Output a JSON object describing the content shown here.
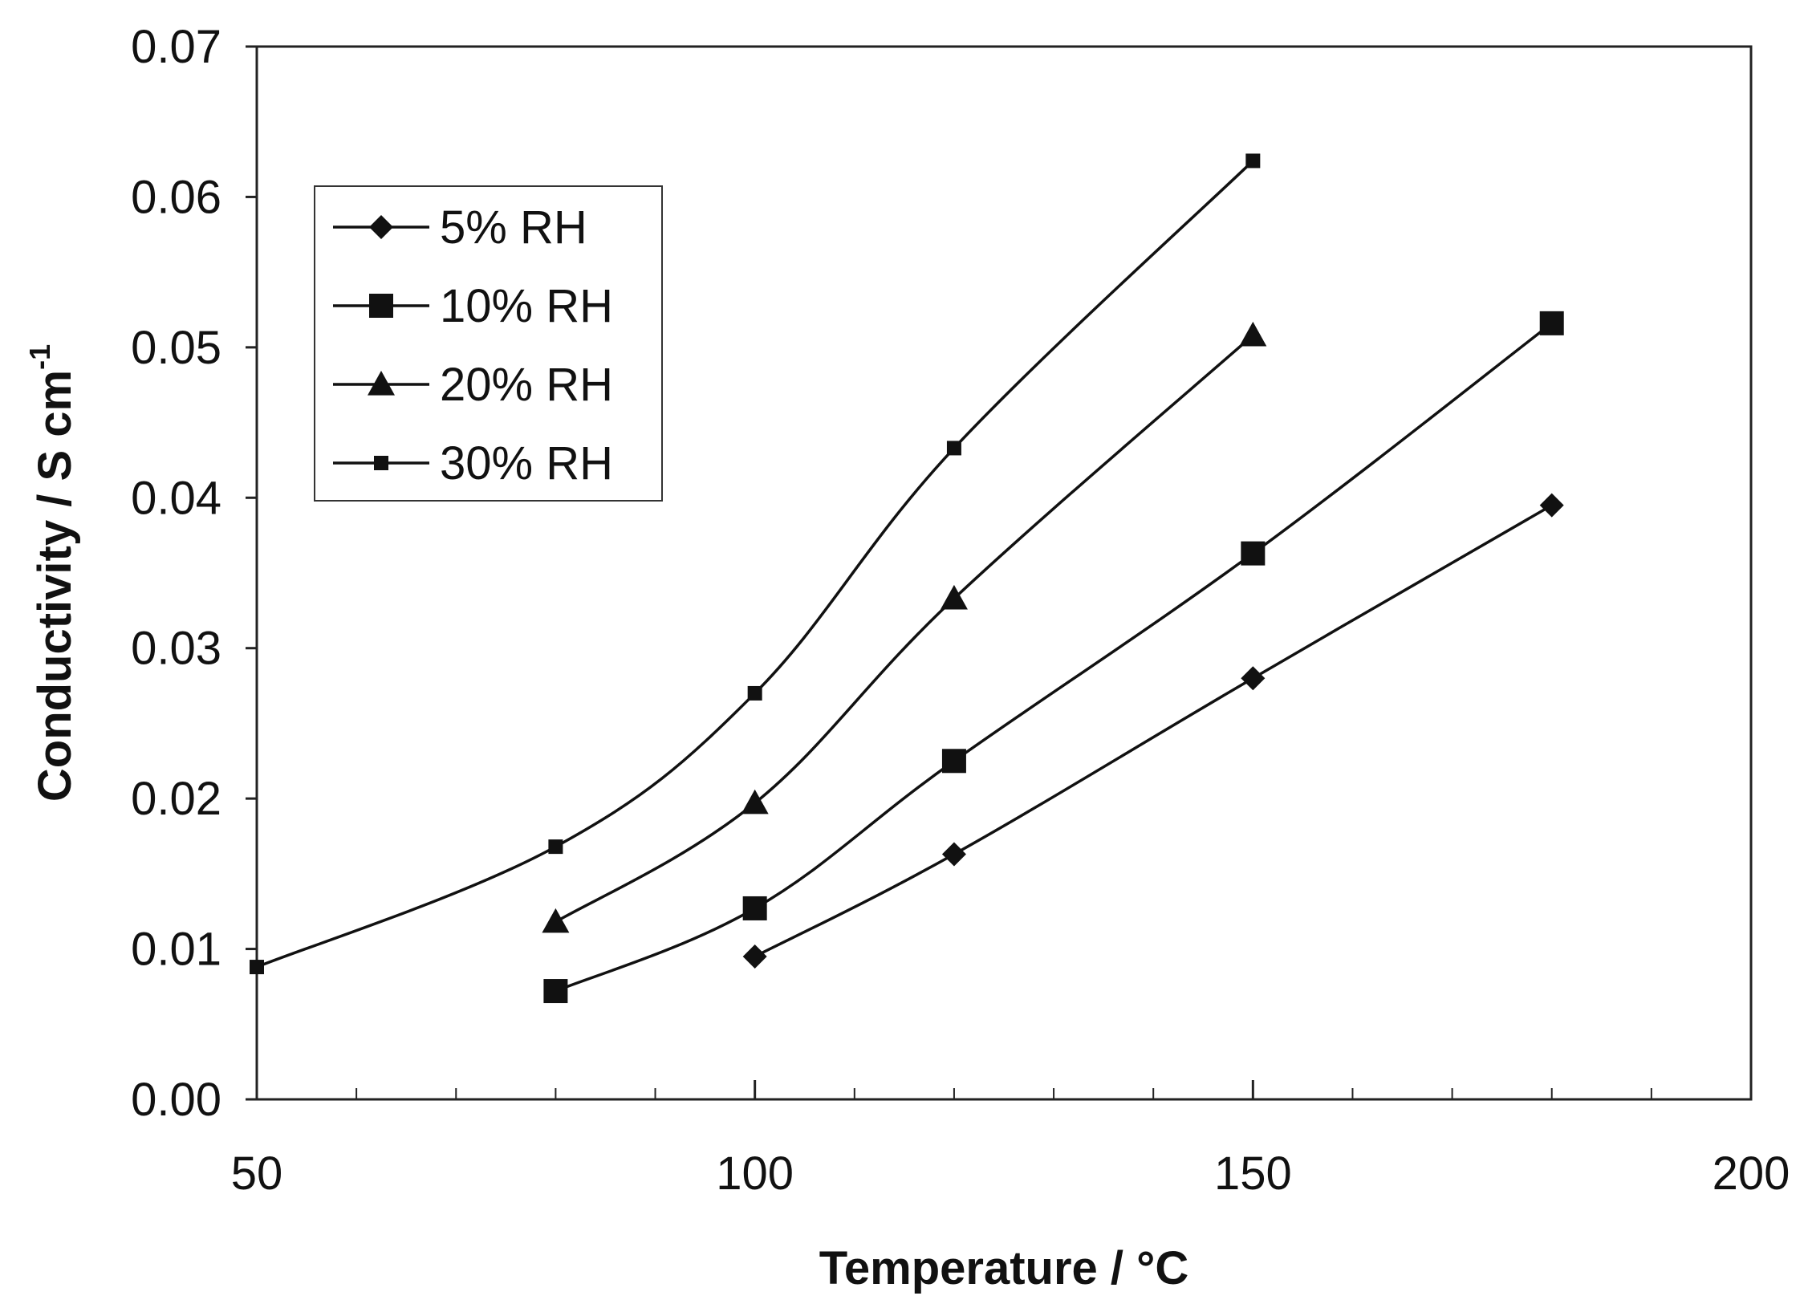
{
  "chart_data": {
    "type": "line",
    "title": "",
    "xlabel": "Temperature / °C",
    "ylabel_main": "Conductivity / S cm",
    "ylabel_sup": "-1",
    "xlim": [
      50,
      200
    ],
    "ylim": [
      0,
      0.07
    ],
    "x_ticks": [
      "50",
      "100",
      "150",
      "200"
    ],
    "y_ticks": [
      "0.00",
      "0.01",
      "0.02",
      "0.03",
      "0.04",
      "0.05",
      "0.06",
      "0.07"
    ],
    "x_tick_values": [
      50,
      100,
      150,
      200
    ],
    "y_tick_values": [
      0,
      0.01,
      0.02,
      0.03,
      0.04,
      0.05,
      0.06,
      0.07
    ],
    "x_minor_step": 10,
    "grid": false,
    "legend_position": "top-left",
    "series": [
      {
        "name": "5% RH",
        "marker": "diamond",
        "x": [
          100,
          120,
          150,
          180
        ],
        "y": [
          0.0095,
          0.0163,
          0.028,
          0.0395
        ]
      },
      {
        "name": "10% RH",
        "marker": "square",
        "x": [
          80,
          100,
          120,
          150,
          180
        ],
        "y": [
          0.0072,
          0.0127,
          0.0225,
          0.0363,
          0.0516
        ]
      },
      {
        "name": "20% RH",
        "marker": "triangle",
        "x": [
          80,
          100,
          120,
          150
        ],
        "y": [
          0.0118,
          0.0197,
          0.0333,
          0.0508
        ]
      },
      {
        "name": "30% RH",
        "marker": "small-square",
        "x": [
          50,
          80,
          100,
          120,
          150
        ],
        "y": [
          0.0088,
          0.0168,
          0.027,
          0.0433,
          0.0624
        ]
      }
    ]
  }
}
